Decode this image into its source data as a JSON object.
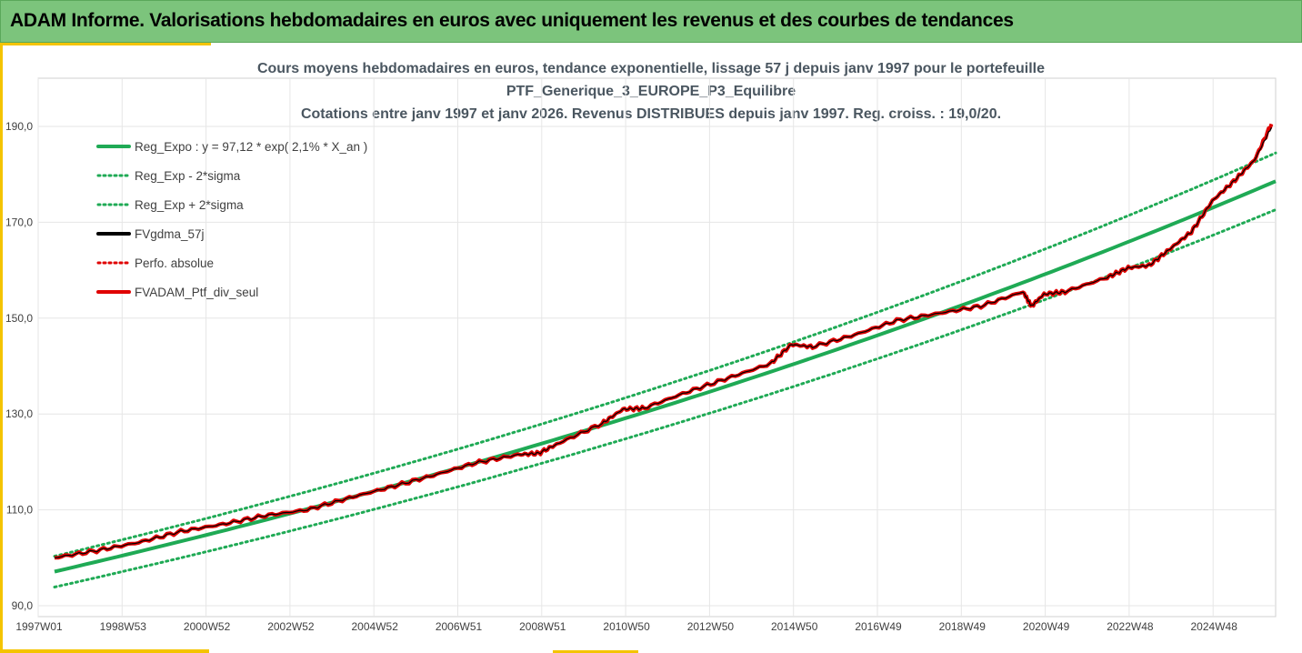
{
  "header": {
    "title": "ADAM Informe. Valorisations hebdomadaires en euros avec uniquement les revenus et des courbes de tendances"
  },
  "colors": {
    "header_bg": "#7cc47c",
    "accent": "#f4c400",
    "trend": "#1faa55",
    "perf": "#e00000",
    "smooth": "#000000",
    "grid": "#e6e6e6"
  },
  "chart_data": {
    "type": "line",
    "title_lines": [
      "Cours moyens hebdomadaires  en euros, tendance exponentielle, lissage 57 j depuis janv 1997 pour le portefeuille",
      "PTF_Generique_3_EUROPE_P3_Equilibre",
      "Cotations entre janv 1997 et janv 2026. Revenus DISTRIBUES depuis janv 1997. Reg. croiss. : 19,0/20."
    ],
    "x_ticks": [
      "1997W01",
      "1998W53",
      "2000W52",
      "2002W52",
      "2004W52",
      "2006W51",
      "2008W51",
      "2010W50",
      "2012W50",
      "2014W50",
      "2016W49",
      "2018W49",
      "2020W49",
      "2022W48",
      "2024W48"
    ],
    "x_range": [
      1997.0,
      2026.0
    ],
    "ylim": [
      90,
      200
    ],
    "y_ticks": [
      "90,0",
      "110,0",
      "130,0",
      "150,0",
      "170,0",
      "190,0"
    ],
    "y_tick_values": [
      90,
      110,
      130,
      150,
      170,
      190
    ],
    "legend_position": "top-left",
    "trend_model": {
      "a": 97.12,
      "rate": 0.021
    },
    "series": [
      {
        "name": "Reg_Expo : y = 97,12 * exp( 2,1% *  X_an )",
        "style": "solid",
        "color": "#1faa55",
        "x": [
          1997,
          2026
        ],
        "y": [
          97.1,
          177.0
        ]
      },
      {
        "name": "Reg_Exp - 2*sigma",
        "style": "dotted",
        "color": "#1faa55",
        "x": [
          1997,
          2026
        ],
        "y": [
          93.9,
          171.0
        ]
      },
      {
        "name": "Reg_Exp + 2*sigma",
        "style": "dotted",
        "color": "#1faa55",
        "x": [
          1997,
          2026
        ],
        "y": [
          100.4,
          183.0
        ]
      },
      {
        "name": "FVgdma_57j",
        "style": "solid-thin",
        "color": "#000000",
        "x": [
          1997.0,
          1998.0,
          1999.0,
          2000.0,
          2001.0,
          2002.0,
          2003.0,
          2004.0,
          2005.0,
          2006.0,
          2007.0,
          2008.0,
          2008.5,
          2009.0,
          2010.0,
          2010.5,
          2011.0,
          2012.0,
          2013.0,
          2014.0,
          2014.5,
          2015.0,
          2016.0,
          2017.0,
          2018.0,
          2019.0,
          2020.0,
          2020.2,
          2020.5,
          2021.0,
          2022.0,
          2022.5,
          2023.0,
          2023.5,
          2024.0,
          2024.5,
          2025.0,
          2025.5,
          2025.9
        ],
        "y": [
          100.0,
          101.5,
          103.2,
          105.5,
          107.0,
          108.8,
          110.0,
          112.5,
          114.8,
          117.2,
          119.8,
          121.5,
          121.8,
          124.0,
          128.0,
          131.0,
          131.2,
          134.5,
          137.5,
          140.5,
          144.5,
          144.0,
          146.5,
          149.5,
          151.0,
          152.5,
          155.5,
          152.5,
          155.0,
          155.5,
          158.5,
          160.5,
          161.0,
          164.5,
          168.0,
          174.5,
          178.5,
          183.0,
          189.8
        ]
      },
      {
        "name": "Perfo. absolue",
        "style": "dotted",
        "color": "#e00000",
        "x": [
          1997.0,
          2002.0,
          2007.0,
          2011.0,
          2015.0,
          2019.0,
          2022.0,
          2025.9
        ],
        "y": [
          100.0,
          108.8,
          119.8,
          131.2,
          144.0,
          152.5,
          158.5,
          189.8
        ]
      },
      {
        "name": "FVADAM_Ptf_div_seul",
        "style": "solid-thick",
        "color": "#e00000",
        "x": [
          1997.0,
          1998.0,
          1999.0,
          2000.0,
          2001.0,
          2002.0,
          2003.0,
          2004.0,
          2005.0,
          2006.0,
          2007.0,
          2008.0,
          2008.5,
          2009.0,
          2010.0,
          2010.5,
          2011.0,
          2012.0,
          2013.0,
          2014.0,
          2014.5,
          2015.0,
          2016.0,
          2017.0,
          2018.0,
          2019.0,
          2020.0,
          2020.2,
          2020.5,
          2021.0,
          2022.0,
          2022.5,
          2023.0,
          2023.5,
          2024.0,
          2024.5,
          2025.0,
          2025.5,
          2025.9
        ],
        "y": [
          100.0,
          101.5,
          103.2,
          105.5,
          107.0,
          108.8,
          110.0,
          112.5,
          114.8,
          117.2,
          119.8,
          121.5,
          121.8,
          124.0,
          128.0,
          131.0,
          131.2,
          134.5,
          137.5,
          140.5,
          144.5,
          144.0,
          146.5,
          149.5,
          151.0,
          152.5,
          155.5,
          152.5,
          155.0,
          155.5,
          158.5,
          160.5,
          161.0,
          164.5,
          168.0,
          174.5,
          178.5,
          183.0,
          190.5
        ]
      }
    ]
  }
}
